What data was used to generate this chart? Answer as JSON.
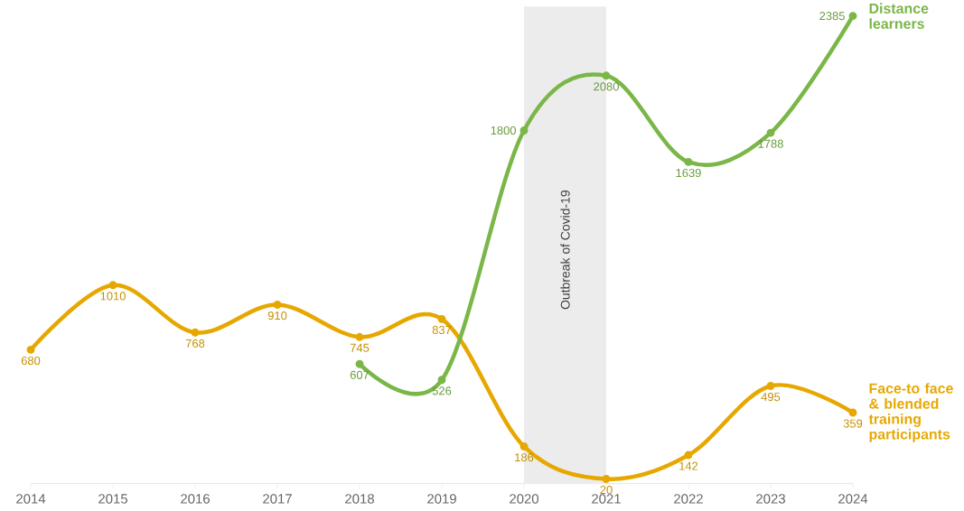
{
  "chart_data": {
    "type": "line",
    "x": [
      2014,
      2015,
      2016,
      2017,
      2018,
      2019,
      2020,
      2021,
      2022,
      2023,
      2024
    ],
    "series": [
      {
        "name": "Face-to face & blended training participants",
        "color": "#e6a800",
        "values": [
          680,
          1010,
          768,
          910,
          745,
          837,
          186,
          20,
          142,
          495,
          359
        ]
      },
      {
        "name": "Distance learners",
        "color": "#7ab648",
        "x": [
          2018,
          2019,
          2020,
          2021,
          2022,
          2023,
          2024
        ],
        "values": [
          607,
          526,
          1800,
          2080,
          1639,
          1788,
          2385
        ]
      }
    ],
    "xlim": [
      2014,
      2024
    ],
    "xticks": [
      2014,
      2015,
      2016,
      2017,
      2018,
      2019,
      2020,
      2021,
      2022,
      2023,
      2024
    ],
    "tick_labels": "x",
    "data_labels": true,
    "marker": "circle",
    "bands": [
      {
        "axis": "x",
        "from": 2020,
        "to": 2021,
        "label": "Outbreak of Covid-19",
        "color": "#ececec"
      }
    ]
  }
}
